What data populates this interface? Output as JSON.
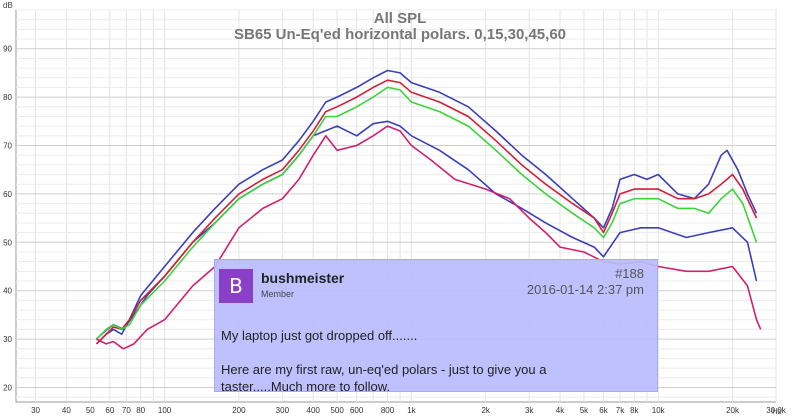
{
  "chart_data": {
    "type": "line",
    "title": "All SPL",
    "subtitle": "SB65 Un-Eq'ed horizontal polars. 0,15,30,45,60",
    "y_unit": "dB",
    "x_unit": "Hz",
    "x_scale": "log",
    "xlim": [
      25,
      30000
    ],
    "ylim": [
      17,
      98
    ],
    "grid": true,
    "y_ticks": [
      20,
      30,
      40,
      50,
      60,
      70,
      80,
      90
    ],
    "x_ticks": [
      {
        "v": 30,
        "label": "30"
      },
      {
        "v": 40,
        "label": "40"
      },
      {
        "v": 50,
        "label": "50"
      },
      {
        "v": 60,
        "label": "60"
      },
      {
        "v": 70,
        "label": "70"
      },
      {
        "v": 80,
        "label": "80"
      },
      {
        "v": 100,
        "label": "100"
      },
      {
        "v": 200,
        "label": "200"
      },
      {
        "v": 300,
        "label": "300"
      },
      {
        "v": 400,
        "label": "400"
      },
      {
        "v": 500,
        "label": "500"
      },
      {
        "v": 600,
        "label": "600"
      },
      {
        "v": 800,
        "label": "800"
      },
      {
        "v": 1000,
        "label": "1k"
      },
      {
        "v": 2000,
        "label": "2k"
      },
      {
        "v": 3000,
        "label": "3k"
      },
      {
        "v": 4000,
        "label": "4k"
      },
      {
        "v": 5000,
        "label": "5k"
      },
      {
        "v": 6000,
        "label": "6k"
      },
      {
        "v": 7000,
        "label": "7k"
      },
      {
        "v": 8000,
        "label": "8k"
      },
      {
        "v": 10000,
        "label": "10k"
      },
      {
        "v": 20000,
        "label": "20k"
      },
      {
        "v": 30000,
        "label": "30.0k"
      }
    ],
    "series": [
      {
        "color": "#3a3fb8",
        "points": [
          [
            53,
            30
          ],
          [
            57,
            31.5
          ],
          [
            62,
            33
          ],
          [
            68,
            32
          ],
          [
            75,
            35
          ],
          [
            85,
            39
          ],
          [
            100,
            43
          ],
          [
            130,
            50
          ],
          [
            160,
            54
          ],
          [
            200,
            59
          ],
          [
            250,
            62
          ],
          [
            300,
            64
          ],
          [
            350,
            68
          ],
          [
            400,
            72
          ],
          [
            500,
            74
          ],
          [
            600,
            72
          ],
          [
            700,
            74.5
          ],
          [
            800,
            75
          ],
          [
            900,
            74
          ],
          [
            1000,
            72
          ],
          [
            1300,
            69
          ],
          [
            1700,
            65
          ],
          [
            2200,
            60
          ],
          [
            2800,
            57
          ],
          [
            3500,
            54
          ],
          [
            4500,
            51
          ],
          [
            5500,
            49
          ],
          [
            6000,
            47
          ],
          [
            7000,
            52
          ],
          [
            8500,
            53
          ],
          [
            10000,
            53
          ],
          [
            13000,
            51
          ],
          [
            16000,
            52
          ],
          [
            20000,
            53
          ],
          [
            23000,
            50
          ],
          [
            25000,
            42
          ]
        ]
      },
      {
        "color": "#3a3fb8",
        "points": [
          [
            53,
            29
          ],
          [
            58,
            31
          ],
          [
            62,
            32
          ],
          [
            67,
            31
          ],
          [
            72,
            34
          ],
          [
            80,
            39
          ],
          [
            100,
            45
          ],
          [
            130,
            52
          ],
          [
            160,
            57
          ],
          [
            200,
            62
          ],
          [
            250,
            65
          ],
          [
            300,
            67
          ],
          [
            350,
            71
          ],
          [
            400,
            75
          ],
          [
            450,
            79
          ],
          [
            500,
            80
          ],
          [
            600,
            82
          ],
          [
            700,
            84
          ],
          [
            800,
            85.5
          ],
          [
            900,
            85
          ],
          [
            1000,
            83
          ],
          [
            1300,
            81
          ],
          [
            1700,
            78
          ],
          [
            2200,
            73
          ],
          [
            2800,
            68
          ],
          [
            3500,
            64
          ],
          [
            4500,
            59
          ],
          [
            5500,
            55
          ],
          [
            6000,
            53
          ],
          [
            6500,
            57
          ],
          [
            7000,
            63
          ],
          [
            8000,
            64
          ],
          [
            9000,
            63
          ],
          [
            10000,
            64
          ],
          [
            12000,
            60
          ],
          [
            14000,
            59
          ],
          [
            16000,
            62
          ],
          [
            18000,
            68
          ],
          [
            19000,
            69
          ],
          [
            21000,
            65
          ],
          [
            23000,
            60
          ],
          [
            25000,
            56
          ]
        ]
      },
      {
        "color": "#d2203a",
        "points": [
          [
            53,
            29
          ],
          [
            58,
            31
          ],
          [
            62,
            32.5
          ],
          [
            67,
            32
          ],
          [
            72,
            34
          ],
          [
            80,
            38
          ],
          [
            100,
            43
          ],
          [
            130,
            50
          ],
          [
            160,
            55
          ],
          [
            200,
            60
          ],
          [
            250,
            63
          ],
          [
            300,
            65
          ],
          [
            350,
            69
          ],
          [
            400,
            73
          ],
          [
            450,
            77
          ],
          [
            500,
            78
          ],
          [
            600,
            80
          ],
          [
            700,
            82
          ],
          [
            800,
            83.5
          ],
          [
            900,
            83
          ],
          [
            1000,
            81
          ],
          [
            1300,
            79
          ],
          [
            1700,
            76
          ],
          [
            2200,
            71
          ],
          [
            2800,
            66
          ],
          [
            3500,
            62
          ],
          [
            4500,
            58
          ],
          [
            5500,
            55
          ],
          [
            6000,
            52
          ],
          [
            6500,
            56
          ],
          [
            7000,
            60
          ],
          [
            8000,
            61
          ],
          [
            10000,
            61
          ],
          [
            12000,
            59
          ],
          [
            14000,
            59
          ],
          [
            16000,
            60
          ],
          [
            18000,
            62
          ],
          [
            20000,
            64
          ],
          [
            22000,
            61
          ],
          [
            25000,
            55
          ]
        ]
      },
      {
        "color": "#3bd43b",
        "points": [
          [
            53,
            30
          ],
          [
            58,
            32
          ],
          [
            62,
            33
          ],
          [
            67,
            32
          ],
          [
            72,
            33
          ],
          [
            80,
            37
          ],
          [
            100,
            42
          ],
          [
            130,
            49
          ],
          [
            160,
            54
          ],
          [
            200,
            59
          ],
          [
            250,
            62
          ],
          [
            300,
            64
          ],
          [
            350,
            68
          ],
          [
            400,
            72
          ],
          [
            450,
            76
          ],
          [
            500,
            76
          ],
          [
            600,
            78
          ],
          [
            700,
            80
          ],
          [
            800,
            82
          ],
          [
            900,
            81.5
          ],
          [
            1000,
            79
          ],
          [
            1300,
            77
          ],
          [
            1700,
            74
          ],
          [
            2200,
            69
          ],
          [
            2800,
            64
          ],
          [
            3500,
            60
          ],
          [
            4500,
            56
          ],
          [
            5500,
            53
          ],
          [
            6000,
            51
          ],
          [
            6500,
            54
          ],
          [
            7000,
            58
          ],
          [
            8000,
            59
          ],
          [
            10000,
            59
          ],
          [
            12000,
            57
          ],
          [
            14000,
            57
          ],
          [
            16000,
            56
          ],
          [
            18000,
            59
          ],
          [
            20000,
            61
          ],
          [
            22000,
            58
          ],
          [
            25000,
            50
          ]
        ]
      },
      {
        "color": "#d0206e",
        "points": [
          [
            53,
            30
          ],
          [
            58,
            29
          ],
          [
            62,
            29.5
          ],
          [
            68,
            28
          ],
          [
            75,
            29
          ],
          [
            85,
            32
          ],
          [
            100,
            34
          ],
          [
            130,
            41
          ],
          [
            160,
            45
          ],
          [
            200,
            53
          ],
          [
            250,
            57
          ],
          [
            300,
            59
          ],
          [
            350,
            63
          ],
          [
            400,
            68
          ],
          [
            450,
            72
          ],
          [
            500,
            69
          ],
          [
            600,
            70
          ],
          [
            700,
            72
          ],
          [
            800,
            74
          ],
          [
            900,
            73
          ],
          [
            1000,
            70
          ],
          [
            1200,
            67
          ],
          [
            1500,
            63
          ],
          [
            2000,
            61
          ],
          [
            2500,
            59
          ],
          [
            3000,
            55
          ],
          [
            3500,
            52
          ],
          [
            4000,
            49
          ],
          [
            5000,
            48
          ],
          [
            6000,
            46
          ],
          [
            7000,
            45.5
          ],
          [
            8500,
            46
          ],
          [
            10000,
            45
          ],
          [
            13000,
            44
          ],
          [
            16000,
            44
          ],
          [
            20000,
            45
          ],
          [
            23000,
            41
          ],
          [
            25000,
            34
          ],
          [
            26000,
            32
          ]
        ]
      }
    ]
  },
  "post": {
    "avatar_letter": "B",
    "username": "bushmeister",
    "role": "Member",
    "post_number": "#188",
    "date": "2016-01-14 2:37 pm",
    "body_line1": "My laptop just got dropped off.......",
    "body_line2": "Here are my first raw, un-eq'ed polars - just to give you a",
    "body_line3": "taster.....Much more to follow."
  }
}
